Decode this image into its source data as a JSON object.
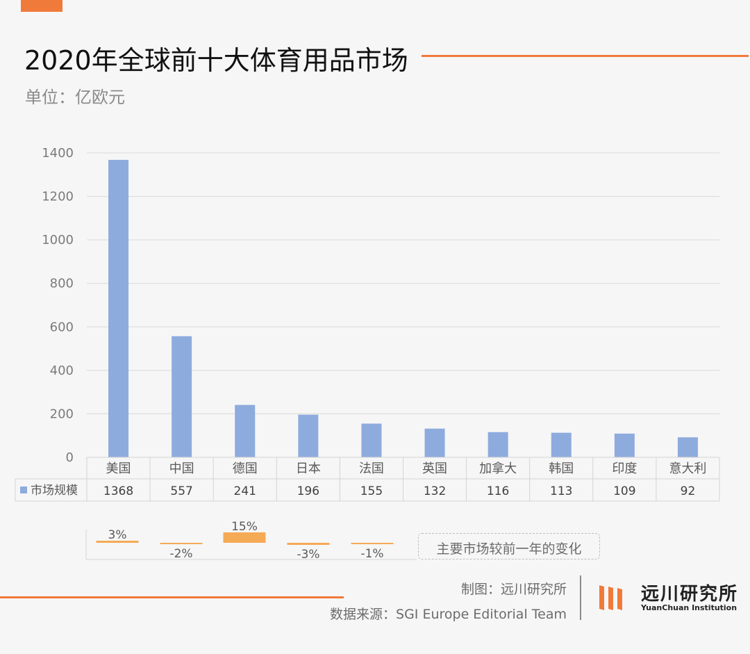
{
  "header": {
    "title": "2020年全球前十大体育用品市场",
    "unit": "单位：亿欧元"
  },
  "colors": {
    "accent": "#f07a3a",
    "bar": "#8eabde",
    "change_bar": "#f5aa55"
  },
  "chart_data": {
    "type": "bar",
    "title": "2020年全球前十大体育用品市场",
    "ylabel": "单位：亿欧元",
    "ylim": [
      0,
      1400
    ],
    "yticks": [
      "0",
      "200",
      "400",
      "600",
      "800",
      "1000",
      "1200",
      "1400"
    ],
    "grid": true,
    "categories": [
      "美国",
      "中国",
      "德国",
      "日本",
      "法国",
      "英国",
      "加拿大",
      "韩国",
      "印度",
      "意大利"
    ],
    "series": [
      {
        "name": "市场规模",
        "values": [
          1368,
          557,
          241,
          196,
          155,
          132,
          116,
          113,
          109,
          92
        ]
      }
    ],
    "table_values": [
      "1368",
      "557",
      "241",
      "196",
      "155",
      "132",
      "116",
      "113",
      "109",
      "92"
    ],
    "change": {
      "label": "主要市场较前一年的变化",
      "values": [
        3,
        -2,
        15,
        -3,
        -1
      ],
      "labels": [
        "3%",
        "-2%",
        "15%",
        "-3%",
        "-1%"
      ]
    }
  },
  "footer": {
    "maker": "制图：远川研究所",
    "source": "数据来源：SGI Europe Editorial Team"
  },
  "logo": {
    "name_cn": "远川研究所",
    "name_en": "YuanChuan Institution"
  }
}
